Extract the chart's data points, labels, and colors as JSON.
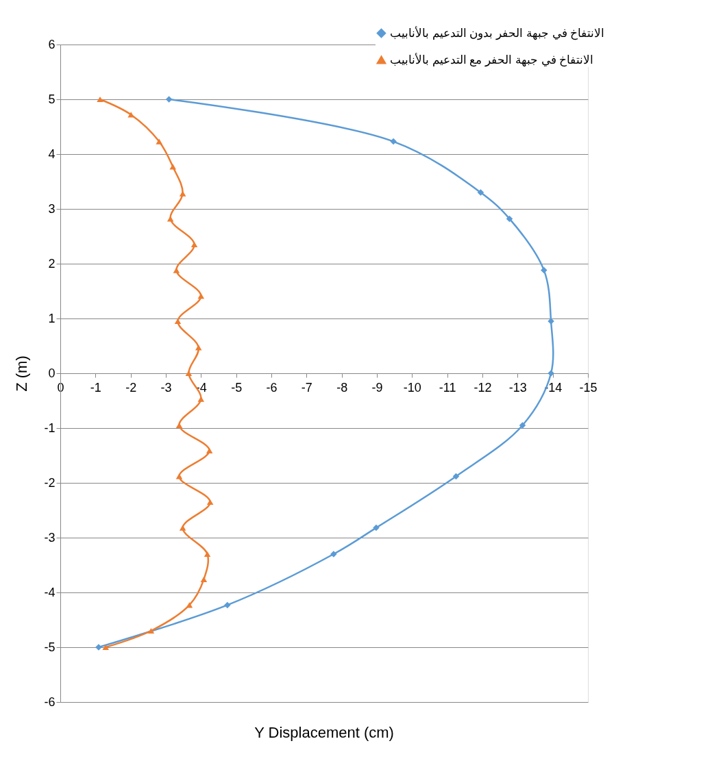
{
  "chart_data": {
    "type": "line",
    "xlabel": "Y Displacement (cm)",
    "ylabel": "Z (m)",
    "xlim": [
      0,
      -15
    ],
    "xticks": [
      0,
      -1,
      -2,
      -3,
      -4,
      -5,
      -6,
      -7,
      -8,
      -9,
      -10,
      -11,
      -12,
      -13,
      -14,
      -15
    ],
    "ylim": [
      -6,
      6
    ],
    "yticks": [
      -6,
      -5,
      -4,
      -3,
      -2,
      -1,
      0,
      1,
      2,
      3,
      4,
      5,
      6
    ],
    "grid": "y",
    "legend": "top right",
    "line_style": "solid",
    "series": [
      {
        "name": "الانتفاخ في جبهة الحفر بدون التدعيم بالأنابيب",
        "color": "#5b9bd5",
        "marker": "diamond",
        "x": [
          -3.09,
          -9.47,
          -11.95,
          -12.77,
          -13.75,
          -13.95,
          -13.95,
          -13.14,
          -11.25,
          -8.98,
          -7.77,
          -4.75,
          -1.09
        ],
        "values": [
          5.0,
          4.23,
          3.3,
          2.82,
          1.88,
          0.95,
          0,
          -0.95,
          -1.88,
          -2.82,
          -3.3,
          -4.23,
          -5.0
        ]
      },
      {
        "name": "الانتفاخ في جبهة الحفر مع التدعيم بالأنابيب",
        "color": "#ed7d31",
        "marker": "triangle",
        "x": [
          -1.13,
          -2.01,
          -2.81,
          -3.2,
          -3.48,
          -3.13,
          -3.81,
          -3.3,
          -4.0,
          -3.34,
          -3.93,
          -3.65,
          -4.0,
          -3.38,
          -4.24,
          -3.38,
          -4.26,
          -3.48,
          -4.18,
          -4.08,
          -3.67,
          -2.58,
          -1.29
        ],
        "values": [
          5.0,
          4.72,
          4.23,
          3.77,
          3.28,
          2.82,
          2.35,
          1.88,
          1.41,
          0.95,
          0.47,
          0,
          -0.47,
          -0.95,
          -1.41,
          -1.88,
          -2.35,
          -2.82,
          -3.3,
          -3.76,
          -4.23,
          -4.7,
          -5.0
        ]
      }
    ]
  }
}
